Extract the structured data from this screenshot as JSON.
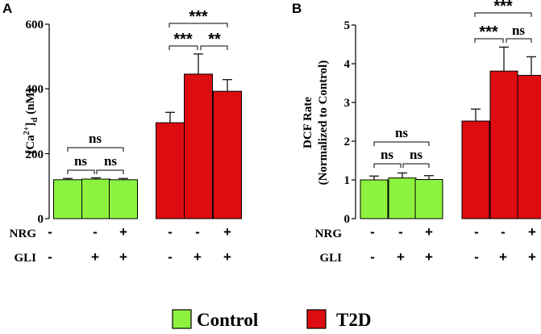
{
  "chart_data": [
    {
      "type": "bar",
      "panel": "A",
      "ylabel_main": "[Ca",
      "ylabel_sup": "2+",
      "ylabel_close": "]",
      "ylabel_sub": "d",
      "ylabel_unit": " (nM)",
      "ylim": [
        0,
        600
      ],
      "yticks": [
        "0",
        "200",
        "400",
        "600"
      ],
      "ytick_values": [
        0,
        200,
        400,
        600
      ],
      "series": [
        {
          "name": "Control",
          "color": "#8df23d",
          "values": [
            120,
            122,
            120
          ],
          "errors": [
            4,
            4,
            4
          ]
        },
        {
          "name": "T2D",
          "color": "#dd0c10",
          "values": [
            296,
            446,
            393
          ],
          "errors": [
            32,
            62,
            36
          ]
        }
      ],
      "comparisons": [
        {
          "group": "Control",
          "from": 0,
          "to": 1,
          "label": "ns"
        },
        {
          "group": "Control",
          "from": 1,
          "to": 2,
          "label": "ns"
        },
        {
          "group": "Control",
          "from": 0,
          "to": 2,
          "label": "ns"
        },
        {
          "group": "T2D",
          "from": 0,
          "to": 1,
          "label": "***"
        },
        {
          "group": "T2D",
          "from": 1,
          "to": 2,
          "label": "**"
        },
        {
          "group": "T2D",
          "from": 0,
          "to": 2,
          "label": "***"
        }
      ]
    },
    {
      "type": "bar",
      "panel": "B",
      "ylabel_line1": "DCF  Rate",
      "ylabel_line2": "(Normalized to Control)",
      "ylim": [
        0,
        5
      ],
      "yticks": [
        "0",
        "1",
        "2",
        "3",
        "4",
        "5"
      ],
      "ytick_values": [
        0,
        1,
        2,
        3,
        4,
        5
      ],
      "series": [
        {
          "name": "Control",
          "color": "#8df23d",
          "values": [
            1.0,
            1.05,
            1.01
          ],
          "errors": [
            0.1,
            0.13,
            0.1
          ]
        },
        {
          "name": "T2D",
          "color": "#dd0c10",
          "values": [
            2.52,
            3.81,
            3.7
          ],
          "errors": [
            0.31,
            0.62,
            0.48
          ]
        }
      ],
      "comparisons": [
        {
          "group": "Control",
          "from": 0,
          "to": 1,
          "label": "ns"
        },
        {
          "group": "Control",
          "from": 1,
          "to": 2,
          "label": "ns"
        },
        {
          "group": "Control",
          "from": 0,
          "to": 2,
          "label": "ns"
        },
        {
          "group": "T2D",
          "from": 0,
          "to": 1,
          "label": "***"
        },
        {
          "group": "T2D",
          "from": 1,
          "to": 2,
          "label": "ns"
        },
        {
          "group": "T2D",
          "from": 0,
          "to": 2,
          "label": "***"
        }
      ]
    }
  ],
  "conditions": {
    "nrg_label": "NRG",
    "gli_label": "GLI",
    "nrg": [
      "-",
      "-",
      "+",
      "-",
      "-",
      "+"
    ],
    "gli": [
      "-",
      "+",
      "+",
      "-",
      "+",
      "+"
    ]
  },
  "legend": [
    {
      "label": "Control",
      "color": "#8df23d"
    },
    {
      "label": "T2D",
      "color": "#dd0c10"
    }
  ]
}
